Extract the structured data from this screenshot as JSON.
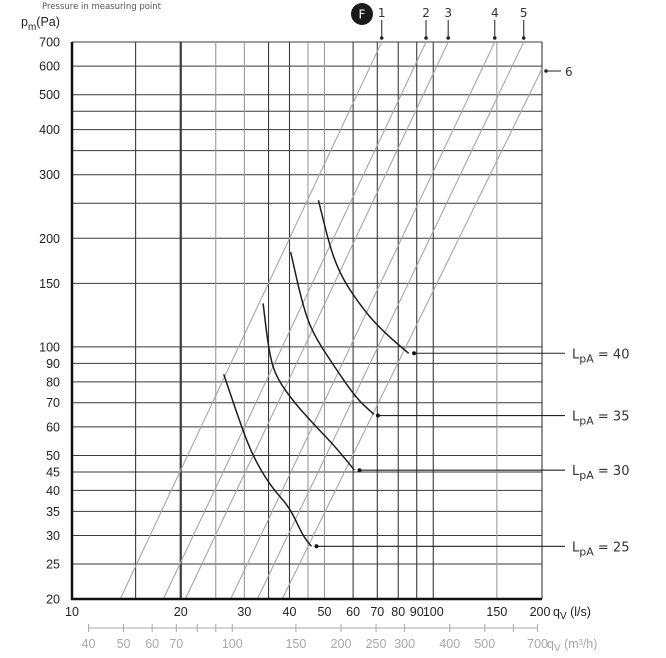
{
  "chart_data": {
    "type": "line",
    "title": "Pressure in measuring point",
    "badge": "F",
    "ylabel": "pm(Pa)",
    "ylabel_main": "p",
    "ylabel_sub": "m",
    "ylabel_unit": "(Pa)",
    "xlabel": "qV (l/s)",
    "xlabel_secondary": "qV (m³/h)",
    "x_scale": "log",
    "y_scale": "log",
    "xlim": [
      10,
      200
    ],
    "ylim": [
      20,
      700
    ],
    "grid": true,
    "y_ticks": [
      20,
      25,
      30,
      35,
      40,
      45,
      50,
      60,
      70,
      80,
      90,
      100,
      150,
      200,
      300,
      400,
      500,
      600,
      700
    ],
    "y_grid": [
      20,
      25,
      30,
      35,
      40,
      45,
      50,
      60,
      70,
      80,
      90,
      100,
      150,
      200,
      250,
      300,
      350,
      400,
      450,
      500,
      600,
      700
    ],
    "x_ticks": [
      10,
      20,
      30,
      40,
      50,
      60,
      70,
      80,
      90,
      100,
      150,
      200
    ],
    "x_grid": [
      10,
      15,
      20,
      25,
      30,
      35,
      40,
      45,
      50,
      60,
      70,
      80,
      90,
      100,
      150,
      200
    ],
    "x_major_grid": [
      10,
      20
    ],
    "x_secondary_ticks": [
      40,
      50,
      60,
      70,
      80,
      90,
      100,
      150,
      200,
      250,
      300,
      400,
      500,
      600,
      700
    ],
    "x_secondary_labels": [
      40,
      50,
      60,
      70,
      100,
      150,
      200,
      250,
      300,
      400,
      500,
      700
    ],
    "damper_positions": [
      {
        "label": "1",
        "points": [
          [
            13.6,
            20
          ],
          [
            72,
            700
          ]
        ]
      },
      {
        "label": "2",
        "points": [
          [
            17.9,
            20
          ],
          [
            95.5,
            700
          ]
        ]
      },
      {
        "label": "3",
        "points": [
          [
            20.6,
            20
          ],
          [
            110,
            700
          ]
        ]
      },
      {
        "label": "4",
        "points": [
          [
            27.5,
            20
          ],
          [
            148,
            700
          ]
        ]
      },
      {
        "label": "5",
        "points": [
          [
            32.6,
            20
          ],
          [
            178,
            700
          ]
        ]
      },
      {
        "label": "6",
        "points": [
          [
            38.2,
            20
          ],
          [
            200,
            590
          ]
        ]
      }
    ],
    "series": [
      {
        "name": "LpA = 25",
        "label_main": "L",
        "label_sub": "pA",
        "label_value": "= 25",
        "points": [
          [
            26.3,
            84
          ],
          [
            29.3,
            61
          ],
          [
            31.6,
            50
          ],
          [
            35.5,
            41
          ],
          [
            40,
            36
          ],
          [
            43.5,
            30
          ],
          [
            46,
            28
          ]
        ],
        "marker": [
          47.5,
          28
        ]
      },
      {
        "name": "LpA = 30",
        "label_main": "L",
        "label_sub": "pA",
        "label_value": "= 30",
        "points": [
          [
            33.8,
            132
          ],
          [
            35.0,
            99
          ],
          [
            36.4,
            84
          ],
          [
            40.3,
            72
          ],
          [
            46,
            62
          ],
          [
            52.5,
            54
          ],
          [
            57.5,
            48.5
          ],
          [
            60.5,
            45.5
          ]
        ],
        "marker": [
          62.5,
          45.5
        ]
      },
      {
        "name": "LpA = 35",
        "label_main": "L",
        "label_sub": "pA",
        "label_value": "= 35",
        "points": [
          [
            40.3,
            183
          ],
          [
            43.4,
            132
          ],
          [
            46.2,
            110
          ],
          [
            52.5,
            90
          ],
          [
            61.2,
            72
          ],
          [
            68.5,
            65
          ]
        ],
        "marker": [
          70.3,
          64.5
        ]
      },
      {
        "name": "LpA = 40",
        "label_main": "L",
        "label_sub": "pA",
        "label_value": "= 40",
        "points": [
          [
            48.1,
            255
          ],
          [
            51.2,
            198
          ],
          [
            53.5,
            172
          ],
          [
            57.5,
            148
          ],
          [
            66.5,
            121
          ],
          [
            76,
            106
          ],
          [
            85.5,
            96
          ]
        ],
        "marker": [
          88.5,
          96
        ]
      }
    ],
    "annotations": [
      "1",
      "2",
      "3",
      "4",
      "5",
      "6",
      "LpA = 25",
      "LpA = 30",
      "LpA = 35",
      "LpA = 40"
    ]
  },
  "colors": {
    "grid": "#3a3a3a",
    "grid_light": "#9a9a9a",
    "diagonal": "#a6a6a6",
    "curve": "#1e1e1e",
    "secondary_axis": "#a8a8a8",
    "badge_bg": "#1b1b1b"
  }
}
